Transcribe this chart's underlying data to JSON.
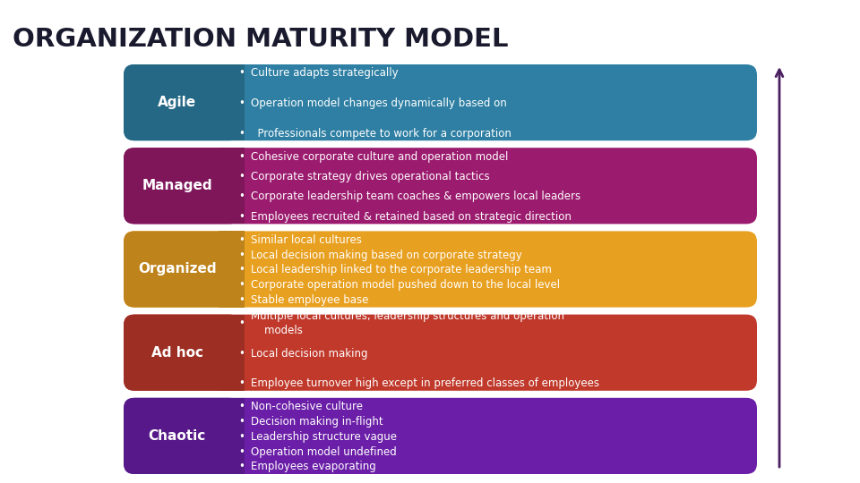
{
  "title": "ORGANIZATION MATURITY MODEL",
  "title_color": "#1a1a2e",
  "background_color": "#ffffff",
  "arrow_color": "#4a2060",
  "rows": [
    {
      "label": "Agile",
      "label_color": "#ffffff",
      "box_color": "#2e7fa3",
      "bullets": [
        "Culture adapts strategically",
        "Operation model changes dynamically based on",
        "  Professionals compete to work for a corporation"
      ]
    },
    {
      "label": "Managed",
      "label_color": "#ffffff",
      "box_color": "#9b1b6e",
      "bullets": [
        "Cohesive corporate culture and operation model",
        "Corporate strategy drives operational tactics",
        "Corporate leadership team coaches & empowers local leaders",
        "Employees recruited & retained based on strategic direction"
      ]
    },
    {
      "label": "Organized",
      "label_color": "#ffffff",
      "box_color": "#e8a020",
      "bullets": [
        "Similar local cultures",
        "Local decision making based on corporate strategy",
        "Local leadership linked to the corporate leadership team",
        "Corporate operation model pushed down to the local level",
        "Stable employee base"
      ]
    },
    {
      "label": "Ad hoc",
      "label_color": "#ffffff",
      "box_color": "#c0392b",
      "bullets": [
        "Multiple local cultures, leadership structures and operation\n    models",
        "Local decision making",
        "Employee turnover high except in preferred classes of employees"
      ]
    },
    {
      "label": "Chaotic",
      "label_color": "#ffffff",
      "box_color": "#6b1fa8",
      "bullets": [
        "Non-cohesive culture",
        "Decision making in-flight",
        "Leadership structure vague",
        "Operation model undefined",
        "Employees evaporating"
      ]
    }
  ]
}
